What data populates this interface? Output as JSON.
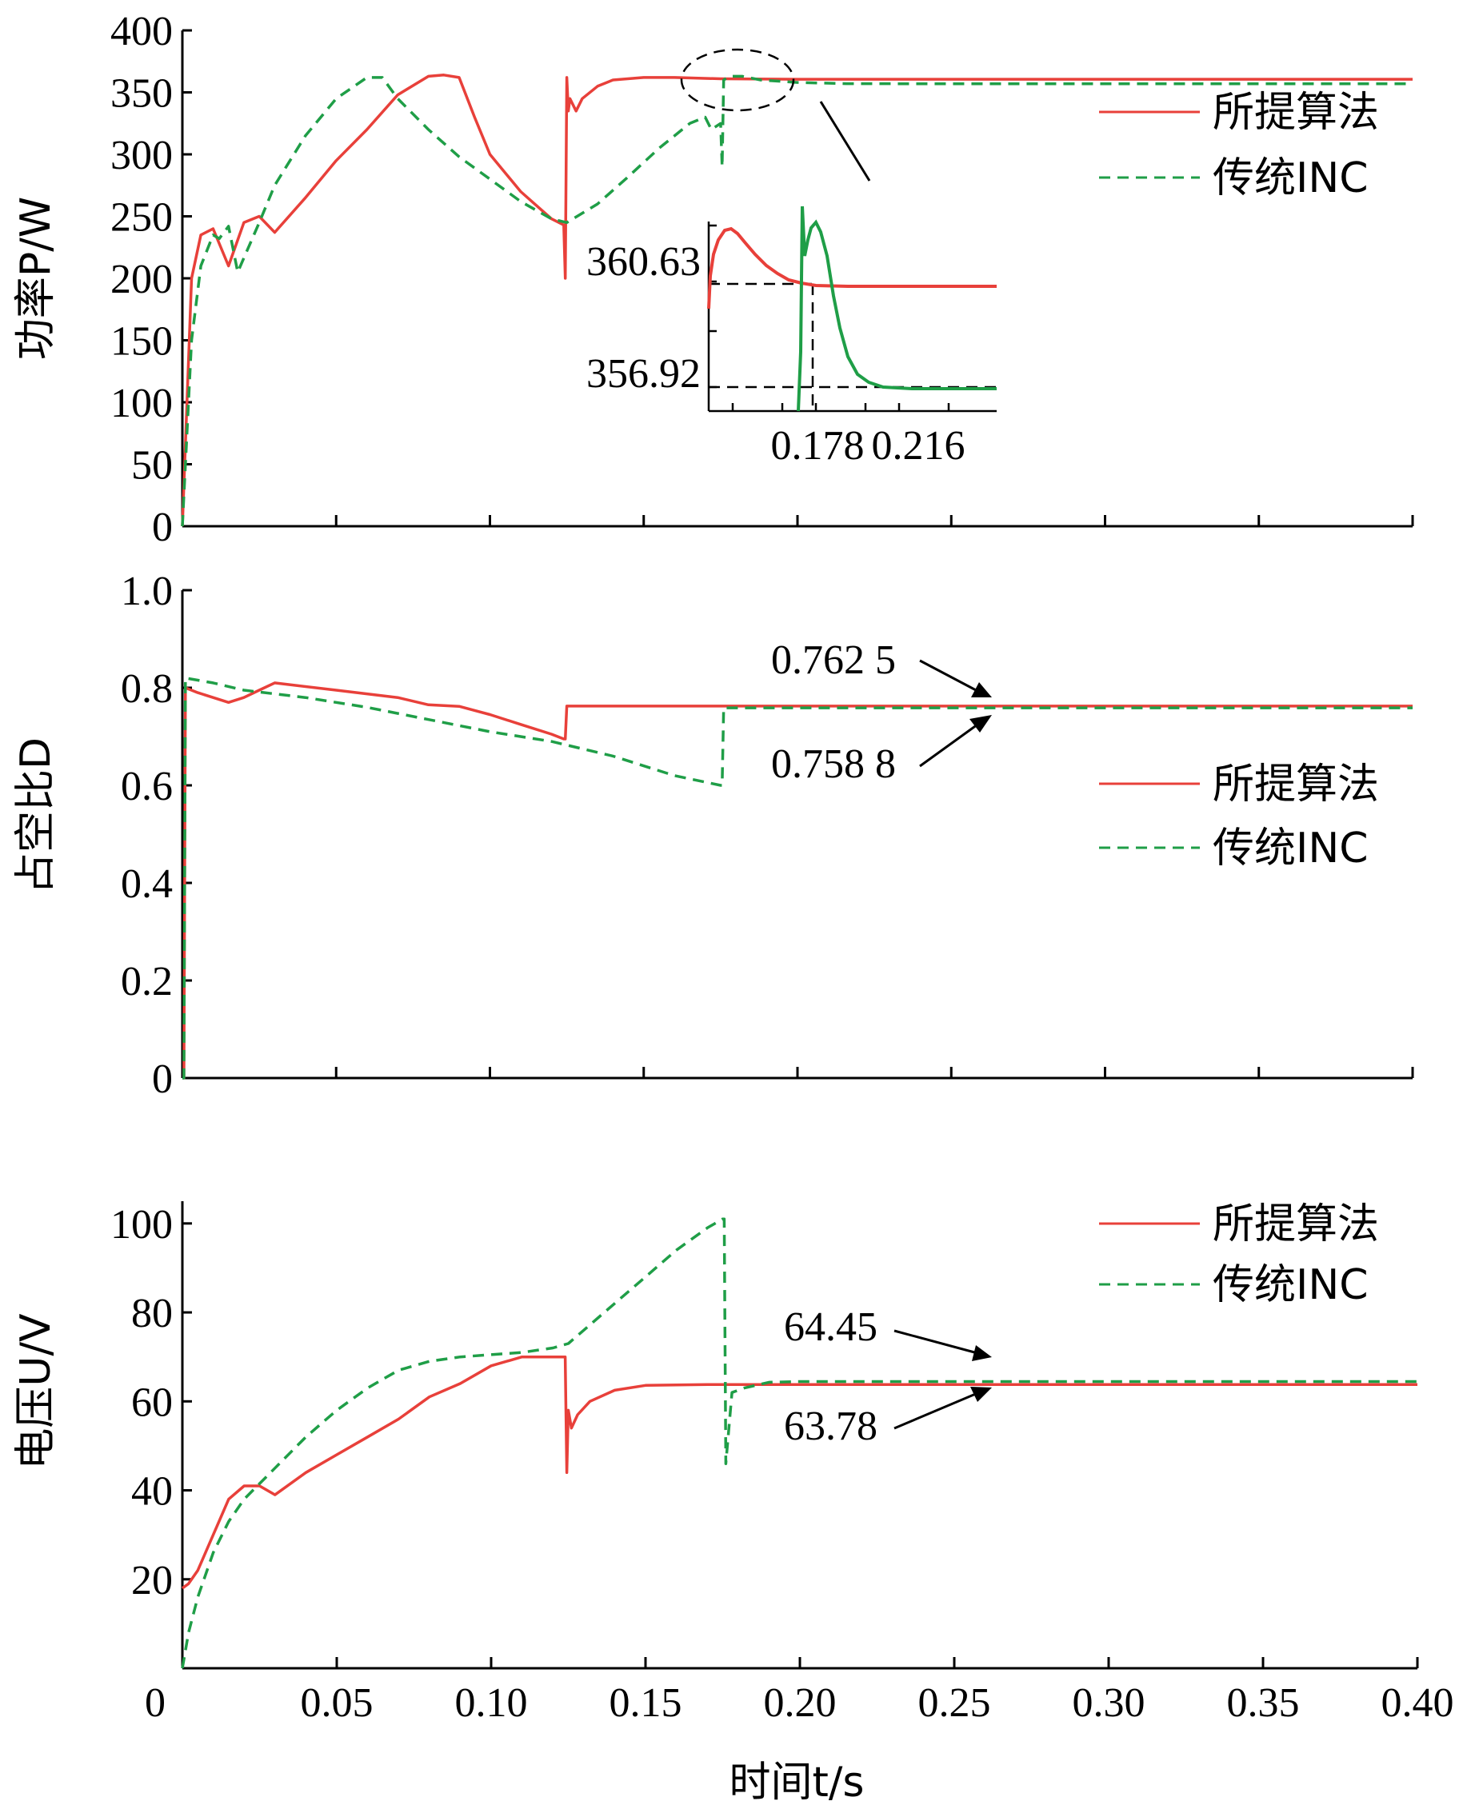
{
  "figure": {
    "xlabel": "时间t/s",
    "x_ticks": [
      "0",
      "0.05",
      "0.10",
      "0.15",
      "0.20",
      "0.25",
      "0.30",
      "0.35",
      "0.40"
    ],
    "colors": {
      "proposed": "#e8403a",
      "traditional": "#1f9e47",
      "axis": "#000000"
    }
  },
  "legend": {
    "proposed": "所提算法",
    "traditional": "传统INC"
  },
  "chart_data": [
    {
      "type": "line",
      "panel": "power",
      "ylabel": "功率P/W",
      "ylim": [
        0,
        400
      ],
      "xlim": [
        0,
        0.4
      ],
      "y_ticks": [
        "0",
        "50",
        "100",
        "150",
        "200",
        "250",
        "300",
        "350",
        "400"
      ],
      "x_tick_values": [
        0,
        0.05,
        0.1,
        0.15,
        0.2,
        0.25,
        0.3,
        0.35,
        0.4
      ],
      "legend_placement": "top-right",
      "series": [
        {
          "name": "所提算法",
          "style": "solid",
          "x": [
            0,
            0.003,
            0.006,
            0.01,
            0.015,
            0.02,
            0.025,
            0.03,
            0.04,
            0.05,
            0.06,
            0.07,
            0.08,
            0.085,
            0.09,
            0.095,
            0.1,
            0.11,
            0.12,
            0.124,
            0.1245,
            0.125,
            0.1255,
            0.126,
            0.128,
            0.13,
            0.135,
            0.14,
            0.15,
            0.16,
            0.175,
            0.2,
            0.25,
            0.3,
            0.35,
            0.4
          ],
          "y": [
            0,
            200,
            235,
            240,
            210,
            245,
            250,
            237,
            265,
            295,
            320,
            348,
            363,
            364,
            362,
            330,
            300,
            270,
            248,
            243,
            200,
            362,
            335,
            345,
            335,
            345,
            355,
            360,
            362,
            362,
            361,
            360.6,
            360.6,
            360.6,
            360.6,
            360.6
          ]
        },
        {
          "name": "传统INC",
          "style": "dashed",
          "x": [
            0,
            0.003,
            0.006,
            0.01,
            0.012,
            0.015,
            0.018,
            0.025,
            0.03,
            0.04,
            0.05,
            0.06,
            0.065,
            0.07,
            0.08,
            0.09,
            0.1,
            0.11,
            0.12,
            0.125,
            0.135,
            0.145,
            0.155,
            0.165,
            0.17,
            0.172,
            0.175,
            0.1755,
            0.176,
            0.178,
            0.182,
            0.188,
            0.2,
            0.216,
            0.25,
            0.3,
            0.35,
            0.4
          ],
          "y": [
            0,
            150,
            210,
            235,
            232,
            242,
            205,
            245,
            275,
            315,
            345,
            362,
            362,
            345,
            320,
            298,
            280,
            262,
            248,
            245,
            260,
            282,
            305,
            325,
            330,
            320,
            325,
            290,
            360,
            363,
            363,
            360,
            358,
            357,
            356.9,
            356.9,
            356.9,
            356.9
          ]
        }
      ],
      "inset": {
        "y_values": [
          "360.63",
          "356.92"
        ],
        "x_values": [
          "0.178",
          "0.216"
        ]
      }
    },
    {
      "type": "line",
      "panel": "duty",
      "ylabel": "占空比D",
      "ylim": [
        0,
        1.0
      ],
      "xlim": [
        0,
        0.4
      ],
      "y_ticks": [
        "0",
        "0.2",
        "0.4",
        "0.6",
        "0.8",
        "1.0"
      ],
      "x_tick_values": [
        0,
        0.05,
        0.1,
        0.15,
        0.2,
        0.25,
        0.3,
        0.35,
        0.4
      ],
      "legend_placement": "right",
      "series": [
        {
          "name": "所提算法",
          "style": "solid",
          "x": [
            0,
            0.0005,
            0.001,
            0.005,
            0.01,
            0.015,
            0.02,
            0.025,
            0.03,
            0.05,
            0.07,
            0.08,
            0.09,
            0.1,
            0.11,
            0.12,
            0.124,
            0.1245,
            0.125,
            0.15,
            0.2,
            0.25,
            0.3,
            0.35,
            0.4
          ],
          "y": [
            0,
            0,
            0.8,
            0.79,
            0.78,
            0.77,
            0.78,
            0.795,
            0.81,
            0.795,
            0.78,
            0.765,
            0.762,
            0.745,
            0.725,
            0.705,
            0.695,
            0.695,
            0.7625,
            0.7625,
            0.7625,
            0.7625,
            0.7625,
            0.7625,
            0.7625
          ]
        },
        {
          "name": "传统INC",
          "style": "dashed",
          "x": [
            0,
            0.0005,
            0.001,
            0.01,
            0.02,
            0.04,
            0.06,
            0.08,
            0.1,
            0.12,
            0.14,
            0.16,
            0.175,
            0.1755,
            0.176,
            0.2,
            0.25,
            0.3,
            0.35,
            0.4
          ],
          "y": [
            0,
            0,
            0.82,
            0.81,
            0.795,
            0.78,
            0.76,
            0.735,
            0.71,
            0.69,
            0.66,
            0.62,
            0.6,
            0.6,
            0.7588,
            0.7588,
            0.7588,
            0.7588,
            0.7588,
            0.7588
          ]
        }
      ],
      "annotations": [
        "0.762 5",
        "0.758 8"
      ]
    },
    {
      "type": "line",
      "panel": "voltage",
      "ylabel": "电压U/V",
      "ylim": [
        0,
        100
      ],
      "xlim": [
        0,
        0.4
      ],
      "y_ticks": [
        "20",
        "40",
        "60",
        "80",
        "100"
      ],
      "y_tick_values": [
        20,
        40,
        60,
        80,
        100
      ],
      "x_tick_values": [
        0,
        0.05,
        0.1,
        0.15,
        0.2,
        0.25,
        0.3,
        0.35,
        0.4
      ],
      "legend_placement": "top-right",
      "series": [
        {
          "name": "所提算法",
          "style": "solid",
          "x": [
            0,
            0.002,
            0.005,
            0.01,
            0.015,
            0.02,
            0.025,
            0.03,
            0.04,
            0.05,
            0.06,
            0.07,
            0.08,
            0.09,
            0.1,
            0.11,
            0.124,
            0.1245,
            0.125,
            0.126,
            0.128,
            0.132,
            0.14,
            0.15,
            0.17,
            0.2,
            0.25,
            0.3,
            0.35,
            0.4
          ],
          "y": [
            18,
            19,
            22,
            30,
            38,
            41,
            41,
            39,
            44,
            48,
            52,
            56,
            61,
            64,
            68,
            70,
            70,
            44,
            58,
            54,
            57,
            60,
            62.5,
            63.6,
            63.8,
            63.78,
            63.78,
            63.78,
            63.78,
            63.78
          ]
        },
        {
          "name": "传统INC",
          "style": "dashed",
          "x": [
            0,
            0.002,
            0.005,
            0.01,
            0.015,
            0.02,
            0.03,
            0.04,
            0.05,
            0.06,
            0.07,
            0.08,
            0.09,
            0.1,
            0.11,
            0.12,
            0.125,
            0.13,
            0.14,
            0.15,
            0.16,
            0.17,
            0.175,
            0.1755,
            0.176,
            0.178,
            0.182,
            0.19,
            0.2,
            0.25,
            0.3,
            0.35,
            0.4
          ],
          "y": [
            0,
            8,
            16,
            26,
            33,
            38,
            45,
            52,
            58,
            63,
            67,
            69,
            70,
            70.5,
            71,
            72,
            73,
            76,
            82,
            88,
            94,
            99,
            101,
            101,
            46,
            62,
            63,
            64.3,
            64.45,
            64.45,
            64.45,
            64.45,
            64.45
          ]
        }
      ],
      "annotations": [
        "64.45",
        "63.78"
      ]
    }
  ]
}
